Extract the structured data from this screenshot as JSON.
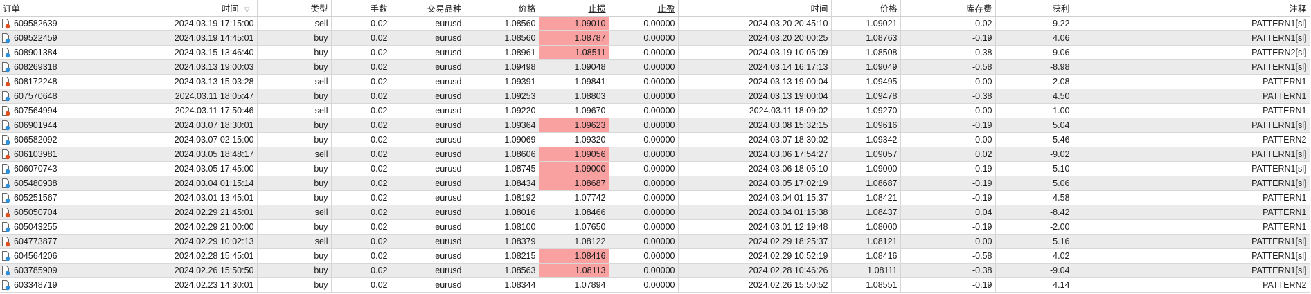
{
  "columns": [
    "订单",
    "时间",
    "类型",
    "手数",
    "交易品种",
    "价格",
    "止损",
    "止盈",
    "时间",
    "价格",
    "库存费",
    "获利",
    "注释"
  ],
  "sorted_column": "时间",
  "colors": {
    "sell_icon": "#e0501e",
    "buy_icon": "#2f8fd8",
    "stoploss_hit": "#f9a1a1",
    "alt_row": "#ebebeb"
  },
  "rows": [
    {
      "order": "609582639",
      "open_time": "2024.03.19 17:15:00",
      "type": "sell",
      "lots": "0.02",
      "symbol": "eurusd",
      "open_price": "1.08560",
      "sl": "1.09010",
      "sl_hit": true,
      "tp": "0.00000",
      "close_time": "2024.03.20 20:45:10",
      "close_price": "1.09021",
      "swap": "0.02",
      "profit": "-9.22",
      "comment": "PATTERN1[sl]"
    },
    {
      "order": "609522459",
      "open_time": "2024.03.19 14:45:01",
      "type": "buy",
      "lots": "0.02",
      "symbol": "eurusd",
      "open_price": "1.08560",
      "sl": "1.08787",
      "sl_hit": true,
      "tp": "0.00000",
      "close_time": "2024.03.20 20:00:25",
      "close_price": "1.08763",
      "swap": "-0.19",
      "profit": "4.06",
      "comment": "PATTERN1[sl]"
    },
    {
      "order": "608901384",
      "open_time": "2024.03.15 13:46:40",
      "type": "buy",
      "lots": "0.02",
      "symbol": "eurusd",
      "open_price": "1.08961",
      "sl": "1.08511",
      "sl_hit": true,
      "tp": "0.00000",
      "close_time": "2024.03.19 10:05:09",
      "close_price": "1.08508",
      "swap": "-0.38",
      "profit": "-9.06",
      "comment": "PATTERN2[sl]"
    },
    {
      "order": "608269318",
      "open_time": "2024.03.13 19:00:03",
      "type": "buy",
      "lots": "0.02",
      "symbol": "eurusd",
      "open_price": "1.09498",
      "sl": "1.09048",
      "sl_hit": false,
      "tp": "0.00000",
      "close_time": "2024.03.14 16:17:13",
      "close_price": "1.09049",
      "swap": "-0.58",
      "profit": "-8.98",
      "comment": "PATTERN1[sl]"
    },
    {
      "order": "608172248",
      "open_time": "2024.03.13 15:03:28",
      "type": "sell",
      "lots": "0.02",
      "symbol": "eurusd",
      "open_price": "1.09391",
      "sl": "1.09841",
      "sl_hit": false,
      "tp": "0.00000",
      "close_time": "2024.03.13 19:00:04",
      "close_price": "1.09495",
      "swap": "0.00",
      "profit": "-2.08",
      "comment": "PATTERN1"
    },
    {
      "order": "607570648",
      "open_time": "2024.03.11 18:05:47",
      "type": "buy",
      "lots": "0.02",
      "symbol": "eurusd",
      "open_price": "1.09253",
      "sl": "1.08803",
      "sl_hit": false,
      "tp": "0.00000",
      "close_time": "2024.03.13 19:00:04",
      "close_price": "1.09478",
      "swap": "-0.38",
      "profit": "4.50",
      "comment": "PATTERN1"
    },
    {
      "order": "607564994",
      "open_time": "2024.03.11 17:50:46",
      "type": "sell",
      "lots": "0.02",
      "symbol": "eurusd",
      "open_price": "1.09220",
      "sl": "1.09670",
      "sl_hit": false,
      "tp": "0.00000",
      "close_time": "2024.03.11 18:09:02",
      "close_price": "1.09270",
      "swap": "0.00",
      "profit": "-1.00",
      "comment": "PATTERN1"
    },
    {
      "order": "606901944",
      "open_time": "2024.03.07 18:30:01",
      "type": "buy",
      "lots": "0.02",
      "symbol": "eurusd",
      "open_price": "1.09364",
      "sl": "1.09623",
      "sl_hit": true,
      "tp": "0.00000",
      "close_time": "2024.03.08 15:32:15",
      "close_price": "1.09616",
      "swap": "-0.19",
      "profit": "5.04",
      "comment": "PATTERN1[sl]"
    },
    {
      "order": "606582092",
      "open_time": "2024.03.07 02:15:00",
      "type": "buy",
      "lots": "0.02",
      "symbol": "eurusd",
      "open_price": "1.09069",
      "sl": "1.09320",
      "sl_hit": false,
      "tp": "0.00000",
      "close_time": "2024.03.07 18:30:02",
      "close_price": "1.09342",
      "swap": "0.00",
      "profit": "5.46",
      "comment": "PATTERN2"
    },
    {
      "order": "606103981",
      "open_time": "2024.03.05 18:48:17",
      "type": "sell",
      "lots": "0.02",
      "symbol": "eurusd",
      "open_price": "1.08606",
      "sl": "1.09056",
      "sl_hit": true,
      "tp": "0.00000",
      "close_time": "2024.03.06 17:54:27",
      "close_price": "1.09057",
      "swap": "0.02",
      "profit": "-9.02",
      "comment": "PATTERN1[sl]"
    },
    {
      "order": "606070743",
      "open_time": "2024.03.05 17:45:00",
      "type": "buy",
      "lots": "0.02",
      "symbol": "eurusd",
      "open_price": "1.08745",
      "sl": "1.09000",
      "sl_hit": true,
      "tp": "0.00000",
      "close_time": "2024.03.06 18:05:10",
      "close_price": "1.09000",
      "swap": "-0.19",
      "profit": "5.10",
      "comment": "PATTERN1[sl]"
    },
    {
      "order": "605480938",
      "open_time": "2024.03.04 01:15:14",
      "type": "buy",
      "lots": "0.02",
      "symbol": "eurusd",
      "open_price": "1.08434",
      "sl": "1.08687",
      "sl_hit": true,
      "tp": "0.00000",
      "close_time": "2024.03.05 17:02:19",
      "close_price": "1.08687",
      "swap": "-0.19",
      "profit": "5.06",
      "comment": "PATTERN1[sl]"
    },
    {
      "order": "605251567",
      "open_time": "2024.03.01 13:45:01",
      "type": "buy",
      "lots": "0.02",
      "symbol": "eurusd",
      "open_price": "1.08192",
      "sl": "1.07742",
      "sl_hit": false,
      "tp": "0.00000",
      "close_time": "2024.03.04 01:15:37",
      "close_price": "1.08421",
      "swap": "-0.19",
      "profit": "4.58",
      "comment": "PATTERN1"
    },
    {
      "order": "605050704",
      "open_time": "2024.02.29 21:45:01",
      "type": "sell",
      "lots": "0.02",
      "symbol": "eurusd",
      "open_price": "1.08016",
      "sl": "1.08466",
      "sl_hit": false,
      "tp": "0.00000",
      "close_time": "2024.03.04 01:15:38",
      "close_price": "1.08437",
      "swap": "0.04",
      "profit": "-8.42",
      "comment": "PATTERN1"
    },
    {
      "order": "605043255",
      "open_time": "2024.02.29 21:00:00",
      "type": "buy",
      "lots": "0.02",
      "symbol": "eurusd",
      "open_price": "1.08100",
      "sl": "1.07650",
      "sl_hit": false,
      "tp": "0.00000",
      "close_time": "2024.03.01 12:19:48",
      "close_price": "1.08000",
      "swap": "-0.19",
      "profit": "-2.00",
      "comment": "PATTERN1"
    },
    {
      "order": "604773877",
      "open_time": "2024.02.29 10:02:13",
      "type": "sell",
      "lots": "0.02",
      "symbol": "eurusd",
      "open_price": "1.08379",
      "sl": "1.08122",
      "sl_hit": false,
      "tp": "0.00000",
      "close_time": "2024.02.29 18:25:37",
      "close_price": "1.08121",
      "swap": "0.00",
      "profit": "5.16",
      "comment": "PATTERN1[sl]"
    },
    {
      "order": "604564206",
      "open_time": "2024.02.28 15:45:01",
      "type": "buy",
      "lots": "0.02",
      "symbol": "eurusd",
      "open_price": "1.08215",
      "sl": "1.08416",
      "sl_hit": true,
      "tp": "0.00000",
      "close_time": "2024.02.29 10:52:19",
      "close_price": "1.08416",
      "swap": "-0.58",
      "profit": "4.02",
      "comment": "PATTERN1[sl]"
    },
    {
      "order": "603785909",
      "open_time": "2024.02.26 15:50:50",
      "type": "buy",
      "lots": "0.02",
      "symbol": "eurusd",
      "open_price": "1.08563",
      "sl": "1.08113",
      "sl_hit": true,
      "tp": "0.00000",
      "close_time": "2024.02.28 10:46:26",
      "close_price": "1.08111",
      "swap": "-0.38",
      "profit": "-9.04",
      "comment": "PATTERN1[sl]"
    },
    {
      "order": "603348719",
      "open_time": "2024.02.23 14:30:01",
      "type": "buy",
      "lots": "0.02",
      "symbol": "eurusd",
      "open_price": "1.08344",
      "sl": "1.07894",
      "sl_hit": false,
      "tp": "0.00000",
      "close_time": "2024.02.26 15:50:52",
      "close_price": "1.08551",
      "swap": "-0.19",
      "profit": "4.14",
      "comment": "PATTERN2"
    }
  ]
}
